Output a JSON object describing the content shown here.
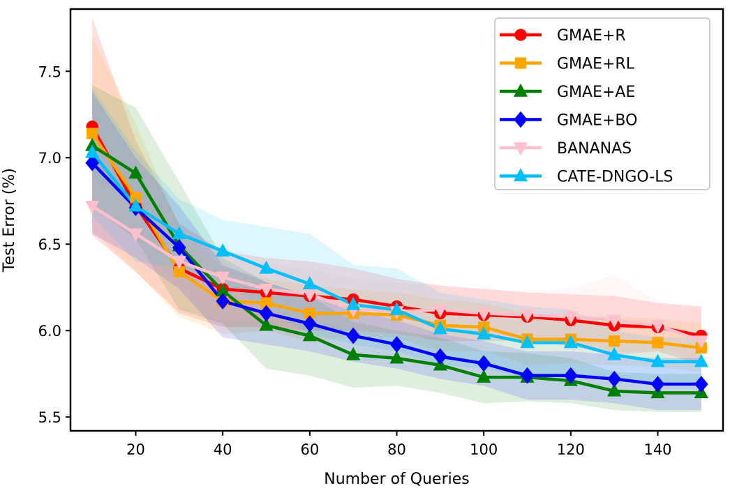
{
  "chart_data": {
    "type": "line",
    "title": "",
    "xlabel": "Number of Queries",
    "ylabel": "Test Error (%)",
    "xlim": [
      5,
      155
    ],
    "ylim": [
      5.42,
      7.86
    ],
    "xticks": [
      20,
      40,
      60,
      80,
      100,
      120,
      140
    ],
    "yticks": [
      5.5,
      6.0,
      6.5,
      7.0,
      7.5
    ],
    "xtick_labels": [
      "20",
      "40",
      "60",
      "80",
      "100",
      "120",
      "140"
    ],
    "ytick_labels": [
      "5.5",
      "6.0",
      "6.5",
      "7.0",
      "7.5"
    ],
    "grid": false,
    "legend_position": "top-right",
    "x": [
      10,
      20,
      30,
      40,
      50,
      60,
      70,
      80,
      90,
      100,
      110,
      120,
      130,
      140,
      150
    ],
    "series": [
      {
        "name": "GMAE+R",
        "color": "#ff0000",
        "marker": "circle",
        "values": [
          7.18,
          6.72,
          6.36,
          6.24,
          6.22,
          6.2,
          6.18,
          6.14,
          6.1,
          6.09,
          6.08,
          6.06,
          6.03,
          6.02,
          5.97
        ],
        "band_upper": [
          7.81,
          7.1,
          6.62,
          6.46,
          6.42,
          6.4,
          6.36,
          6.3,
          6.26,
          6.24,
          6.22,
          6.21,
          6.2,
          6.16,
          6.14
        ],
        "band_lower": [
          6.55,
          6.34,
          6.1,
          6.02,
          6.02,
          6.0,
          6.0,
          5.98,
          5.94,
          5.94,
          5.94,
          5.91,
          5.86,
          5.88,
          5.8
        ]
      },
      {
        "name": "GMAE+RL",
        "color": "#ffa500",
        "marker": "square",
        "values": [
          7.14,
          6.77,
          6.34,
          6.17,
          6.16,
          6.1,
          6.1,
          6.09,
          6.03,
          6.02,
          5.95,
          5.95,
          5.94,
          5.93,
          5.9
        ],
        "band_upper": [
          7.7,
          7.2,
          6.6,
          6.36,
          6.3,
          6.26,
          6.24,
          6.22,
          6.18,
          6.16,
          6.1,
          6.09,
          6.08,
          6.07,
          6.04
        ],
        "band_lower": [
          6.58,
          6.34,
          6.08,
          5.98,
          6.0,
          5.94,
          5.96,
          5.96,
          5.88,
          5.88,
          5.8,
          5.81,
          5.8,
          5.79,
          5.76
        ]
      },
      {
        "name": "GMAE+AE",
        "color": "#008000",
        "marker": "triangle-up",
        "values": [
          7.07,
          6.91,
          6.49,
          6.23,
          6.03,
          5.97,
          5.86,
          5.84,
          5.8,
          5.73,
          5.73,
          5.71,
          5.65,
          5.64,
          5.64
        ],
        "band_upper": [
          7.42,
          7.29,
          6.86,
          6.42,
          6.28,
          6.2,
          6.05,
          6.0,
          5.96,
          5.88,
          5.87,
          5.84,
          5.76,
          5.75,
          5.75
        ],
        "band_lower": [
          6.72,
          6.53,
          6.12,
          6.04,
          5.78,
          5.74,
          5.67,
          5.68,
          5.64,
          5.58,
          5.59,
          5.58,
          5.54,
          5.53,
          5.53
        ]
      },
      {
        "name": "GMAE+BO",
        "color": "#0000ff",
        "marker": "diamond",
        "values": [
          6.97,
          6.71,
          6.48,
          6.17,
          6.1,
          6.04,
          5.97,
          5.92,
          5.85,
          5.81,
          5.74,
          5.74,
          5.72,
          5.69,
          5.69
        ],
        "band_upper": [
          7.38,
          7.0,
          6.72,
          6.38,
          6.28,
          6.2,
          6.12,
          6.06,
          5.98,
          5.94,
          5.88,
          5.88,
          5.86,
          5.84,
          5.84
        ],
        "band_lower": [
          6.56,
          6.42,
          6.24,
          5.96,
          5.92,
          5.88,
          5.82,
          5.78,
          5.72,
          5.68,
          5.6,
          5.6,
          5.58,
          5.54,
          5.54
        ]
      },
      {
        "name": "BANANAS",
        "color": "#ffc0cb",
        "marker": "triangle-down",
        "values": [
          6.72,
          6.56,
          6.4,
          6.31,
          6.24,
          6.21,
          6.12,
          6.11,
          6.12,
          6.1,
          6.09,
          6.08,
          6.06,
          6.03,
          5.94
        ],
        "band_upper": [
          6.88,
          6.74,
          6.58,
          6.46,
          6.38,
          6.36,
          6.3,
          6.28,
          6.26,
          6.24,
          6.23,
          6.24,
          6.32,
          6.17,
          6.12
        ],
        "band_lower": [
          6.56,
          6.38,
          6.1,
          6.06,
          6.06,
          6.04,
          6.0,
          5.96,
          5.96,
          5.96,
          5.94,
          5.92,
          5.92,
          5.92,
          5.8
        ]
      },
      {
        "name": "CATE-DNGO-LS",
        "color": "#00bfff",
        "marker": "triangle-up",
        "values": [
          7.03,
          6.72,
          6.56,
          6.46,
          6.36,
          6.27,
          6.15,
          6.12,
          6.01,
          5.98,
          5.93,
          5.93,
          5.86,
          5.82,
          5.82
        ],
        "band_upper": [
          7.4,
          7.04,
          6.76,
          6.64,
          6.6,
          6.56,
          6.38,
          6.36,
          6.22,
          6.18,
          6.14,
          6.12,
          6.0,
          5.96,
          5.96
        ],
        "band_lower": [
          6.66,
          6.4,
          6.36,
          6.28,
          6.12,
          5.98,
          5.92,
          5.88,
          5.8,
          5.78,
          5.72,
          5.74,
          5.72,
          5.68,
          5.68
        ]
      }
    ]
  }
}
